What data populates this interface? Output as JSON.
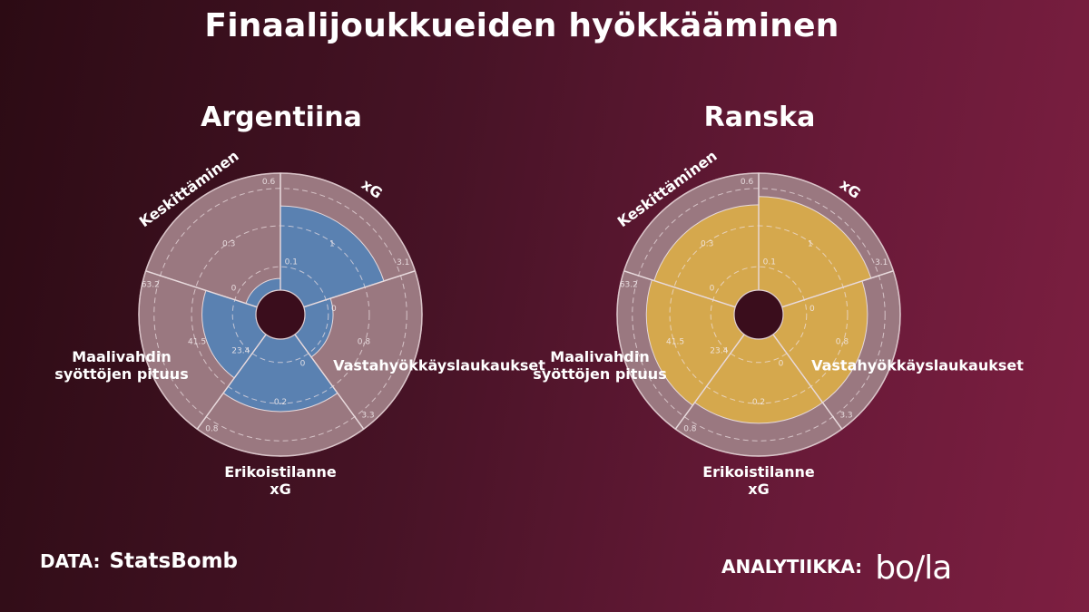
{
  "title": "Finaalijoukkueiden hyökkääminen",
  "footer": {
    "data_label": "DATA:",
    "data_source": "StatsBomb",
    "analytics_label": "ANALYTIIKKA:",
    "analytics_brand": "bo/la"
  },
  "colors": {
    "background": "#5a1730",
    "wedge_background": "#9a7880",
    "argentina_fill": "#5a81b1",
    "france_fill": "#d5a84d"
  },
  "chart_data": [
    {
      "type": "radar",
      "title": "Argentiina",
      "categories": [
        "xG",
        "Vastahyökkäyslaukaukset",
        "Erikoistilanne xG",
        "Maalivahdin syöttöjen pituus",
        "Keskittäminen"
      ],
      "category_labels": [
        [
          "xG"
        ],
        [
          "Vastahyökkäyslaukaukset"
        ],
        [
          "Erikoistilanne",
          "xG"
        ],
        [
          "Maalivahdin",
          "syöttöjen pituus"
        ],
        [
          "Keskittäminen"
        ]
      ],
      "ring_labels": [
        [
          "0.1",
          "1",
          "3.1"
        ],
        [
          "0",
          "0.8",
          "3.3"
        ],
        [
          "0",
          "0.2",
          "0.8"
        ],
        [
          "23.4",
          "41.5",
          "63.2"
        ],
        [
          "0",
          "0.3",
          "0.6"
        ]
      ],
      "values": [
        0.72,
        0.24,
        0.62,
        0.46,
        0.1
      ],
      "fill_color": "#5a81b1"
    },
    {
      "type": "radar",
      "title": "Ranska",
      "categories": [
        "xG",
        "Vastahyökkäyslaukaukset",
        "Erikoistilanne xG",
        "Maalivahdin syöttöjen pituus",
        "Keskittäminen"
      ],
      "category_labels": [
        [
          "xG"
        ],
        [
          "Vastahyökkäyslaukaukset"
        ],
        [
          "Erikoistilanne",
          "xG"
        ],
        [
          "Maalivahdin",
          "syöttöjen pituus"
        ],
        [
          "Keskittäminen"
        ]
      ],
      "ring_labels": [
        [
          "0.1",
          "1",
          "3.1"
        ],
        [
          "0",
          "0.8",
          "3.3"
        ],
        [
          "0",
          "0.2",
          "0.8"
        ],
        [
          "23.4",
          "41.5",
          "63.2"
        ],
        [
          "0",
          "0.3",
          "0.6"
        ]
      ],
      "values": [
        0.8,
        0.72,
        0.72,
        0.75,
        0.73
      ],
      "fill_color": "#d5a84d"
    }
  ]
}
